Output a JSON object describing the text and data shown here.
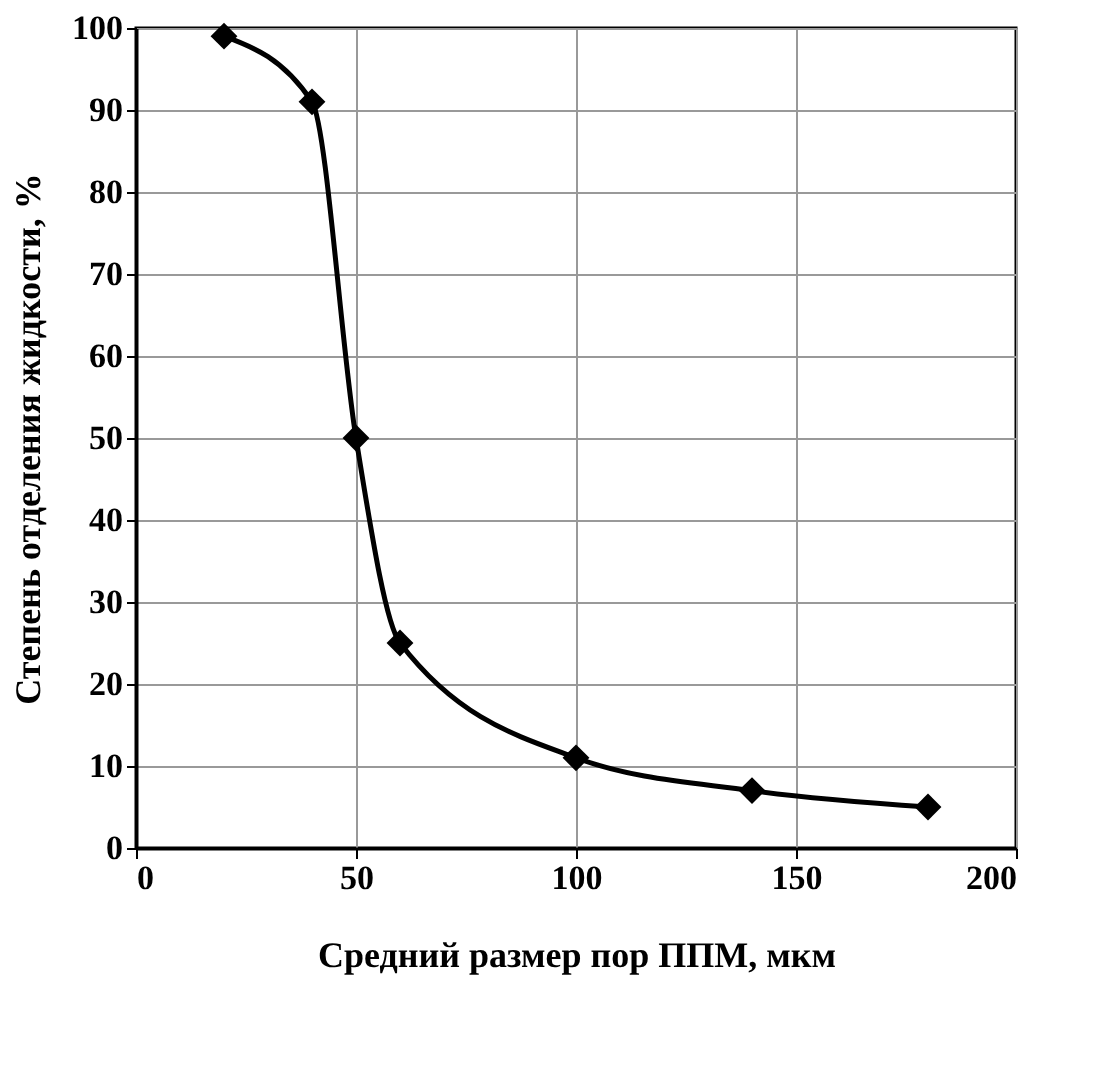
{
  "chart_data": {
    "type": "line",
    "xlabel": "Средний размер пор ППМ, мкм",
    "ylabel": "Степень отделения жидкости, %",
    "x": [
      20,
      40,
      50,
      60,
      100,
      140,
      180
    ],
    "series": [
      {
        "color": "#000000",
        "values": [
          99,
          91,
          50,
          25,
          11,
          7,
          5
        ]
      }
    ],
    "xlim": [
      0,
      200
    ],
    "xticks": [
      0,
      50,
      100,
      150,
      200
    ],
    "ylim": [
      0,
      100
    ],
    "yticks": [
      0,
      10,
      20,
      30,
      40,
      50,
      60,
      70,
      80,
      90,
      100
    ],
    "grid": true,
    "marker": "diamond",
    "line_style": "solid"
  }
}
